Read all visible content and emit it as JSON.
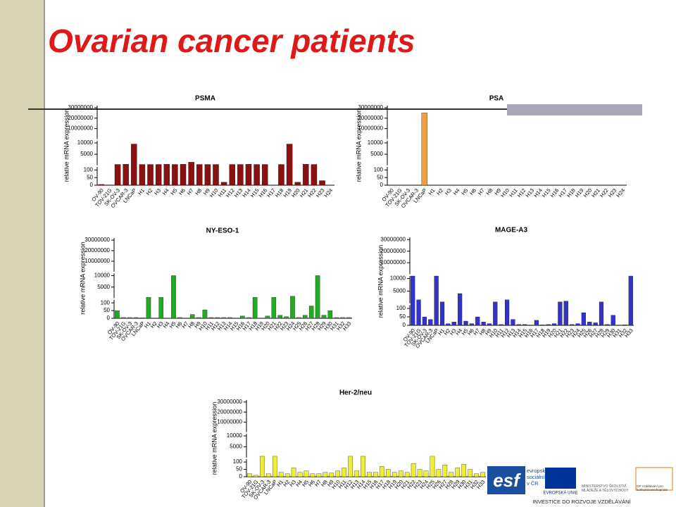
{
  "slide_title": "Ovarian cancer patients",
  "footer": {
    "esf": "esf",
    "esf_text": "evropský sociální fond v ČR",
    "eu": "EVROPSKÁ UNIE",
    "msmt": "MINISTERSTVO ŠKOLSTVÍ, MLÁDEŽE A TĚLOVÝCHOVY",
    "op": "OP Vzdělávání pro konkurenceschopnost",
    "slogan": "INVESTICE DO ROZVOJE VZDĚLÁVÁNÍ"
  },
  "chart_data": [
    {
      "type": "bar",
      "title": "PSMA",
      "y_label": "relative mRNA expression",
      "color": "#8b1010",
      "categories": [
        "OV-90",
        "TOV-21G",
        "SK-OV-3",
        "OVCAR-3",
        "LNCaP",
        "H1",
        "H2",
        "H3",
        "H4",
        "H5",
        "H6",
        "H7",
        "H8",
        "H9",
        "H10",
        "H11",
        "H12",
        "H13",
        "H14",
        "H15",
        "H16",
        "H17",
        "H18",
        "H19",
        "H20",
        "H21",
        "H22",
        "H23",
        "H24"
      ],
      "values": [
        5,
        2,
        500,
        600,
        9500,
        500,
        500,
        500,
        600,
        500,
        600,
        1500,
        500,
        500,
        500,
        20,
        500,
        500,
        600,
        500,
        500,
        0,
        500,
        9500,
        20,
        600,
        500,
        30,
        0
      ],
      "y_segments": [
        {
          "ylim": [
            0,
            120
          ],
          "yticks": [
            0,
            50,
            100
          ]
        },
        {
          "ylim": [
            120,
            11000
          ],
          "yticks": [
            5000,
            10000
          ]
        },
        {
          "ylim": [
            11000,
            32000000
          ],
          "yticks": [
            10000000,
            20000000,
            30000000
          ]
        }
      ]
    },
    {
      "type": "bar",
      "title": "PSA",
      "y_label": "relative mRNA expression",
      "color": "#f0a040",
      "categories": [
        "OV-90",
        "TOV-21G",
        "SK-OV-3",
        "OVCAR-3",
        "LNCaP",
        "H1",
        "H2",
        "H3",
        "H4",
        "H5",
        "H6",
        "H7",
        "H8",
        "H9",
        "H10",
        "H11",
        "H12",
        "H13",
        "H14",
        "H15",
        "H16",
        "H17",
        "H18",
        "H19",
        "H20",
        "H21",
        "H22",
        "H23",
        "H24"
      ],
      "values": [
        2,
        0,
        0,
        0,
        25000000,
        0,
        0,
        0,
        0,
        0,
        0,
        0,
        0,
        0,
        0,
        0,
        0,
        0,
        0,
        0,
        0,
        0,
        0,
        0,
        0,
        0,
        0,
        0,
        0
      ],
      "y_segments": [
        {
          "ylim": [
            0,
            120
          ],
          "yticks": [
            0,
            50,
            100
          ]
        },
        {
          "ylim": [
            120,
            11000
          ],
          "yticks": [
            5000,
            10000
          ]
        },
        {
          "ylim": [
            11000,
            32000000
          ],
          "yticks": [
            10000000,
            20000000,
            30000000
          ]
        }
      ]
    },
    {
      "type": "bar",
      "title": "NY-ESO-1",
      "y_label": "relative mRNA expression",
      "color": "#22aa22",
      "categories": [
        "OV-90",
        "TOV-21G",
        "SK-OV-3",
        "OVCAR-3",
        "LNCaP",
        "H1",
        "H2",
        "H3",
        "H4",
        "H5",
        "H6",
        "H7",
        "H8",
        "H9",
        "H10",
        "H11",
        "H12",
        "H13",
        "H14",
        "H15",
        "H16",
        "H17",
        "H18",
        "H19",
        "H20",
        "H21",
        "H22",
        "H23",
        "H24",
        "H25",
        "H26",
        "H27",
        "H28",
        "H29",
        "H30",
        "H31",
        "H32",
        "H33"
      ],
      "values": [
        50,
        5,
        5,
        5,
        3,
        500,
        2,
        500,
        2,
        10000,
        5,
        2,
        25,
        5,
        55,
        5,
        5,
        5,
        5,
        2,
        15,
        5,
        500,
        2,
        15,
        500,
        20,
        10,
        1000,
        5,
        20,
        80,
        10000,
        20,
        50,
        5,
        5,
        5
      ],
      "y_segments": [
        {
          "ylim": [
            0,
            120
          ],
          "yticks": [
            0,
            50,
            100
          ]
        },
        {
          "ylim": [
            120,
            11000
          ],
          "yticks": [
            5000,
            10000
          ]
        },
        {
          "ylim": [
            11000,
            32000000
          ],
          "yticks": [
            10000000,
            20000000,
            30000000
          ]
        }
      ]
    },
    {
      "type": "bar",
      "title": "MAGE-A3",
      "y_label": "relative mRNA expression",
      "color": "#3333cc",
      "categories": [
        "OV-90",
        "TOV-21G",
        "SK-OV-3",
        "OVCAR-3",
        "LNCaP",
        "H1",
        "H2",
        "H3",
        "H4",
        "H5",
        "H6",
        "H7",
        "H8",
        "H9",
        "H10",
        "H11",
        "H12",
        "H13",
        "H14",
        "H15",
        "H16",
        "H17",
        "H18",
        "H19",
        "H20",
        "H21",
        "H22",
        "H23",
        "H24",
        "H25",
        "H26",
        "H27",
        "H28",
        "H29",
        "H30",
        "H31",
        "H32",
        "H33"
      ],
      "values": [
        11000,
        1500,
        50,
        35,
        11000,
        700,
        10,
        20,
        4000,
        25,
        10,
        50,
        20,
        10,
        700,
        5,
        1500,
        35,
        5,
        5,
        2,
        30,
        3,
        5,
        10,
        700,
        1000,
        5,
        10,
        75,
        20,
        15,
        700,
        5,
        60,
        2,
        3,
        11000
      ],
      "y_segments": [
        {
          "ylim": [
            0,
            120
          ],
          "yticks": [
            0,
            50,
            100
          ]
        },
        {
          "ylim": [
            120,
            11000
          ],
          "yticks": [
            5000,
            10000
          ]
        },
        {
          "ylim": [
            11000,
            32000000
          ],
          "yticks": [
            10000000,
            20000000,
            30000000
          ]
        }
      ]
    },
    {
      "type": "bar",
      "title": "Her-2/neu",
      "y_label": "relative mRNA expression",
      "color": "#eeee33",
      "categories": [
        "OV-90",
        "TOV-21G",
        "SK-OV-3",
        "OVCAR-3",
        "LNCaP",
        "H1",
        "H2",
        "H3",
        "H4",
        "H5",
        "H6",
        "H7",
        "H8",
        "H9",
        "H10",
        "H11",
        "H12",
        "H13",
        "H14",
        "H15",
        "H16",
        "H17",
        "H18",
        "H19",
        "H20",
        "H21",
        "H22",
        "H23",
        "H24",
        "H25",
        "H26",
        "H27",
        "H28",
        "H29",
        "H30",
        "H31",
        "H32",
        "H33"
      ],
      "values": [
        20,
        10,
        700,
        20,
        700,
        30,
        20,
        60,
        30,
        40,
        20,
        20,
        30,
        25,
        40,
        60,
        700,
        40,
        700,
        30,
        30,
        70,
        50,
        30,
        40,
        30,
        90,
        50,
        40,
        700,
        50,
        80,
        30,
        60,
        85,
        50,
        20,
        30
      ],
      "y_segments": [
        {
          "ylim": [
            0,
            120
          ],
          "yticks": [
            0,
            50,
            100
          ]
        },
        {
          "ylim": [
            120,
            11000
          ],
          "yticks": [
            5000,
            10000
          ]
        },
        {
          "ylim": [
            11000,
            32000000
          ],
          "yticks": [
            10000000,
            20000000,
            30000000
          ]
        }
      ]
    }
  ]
}
